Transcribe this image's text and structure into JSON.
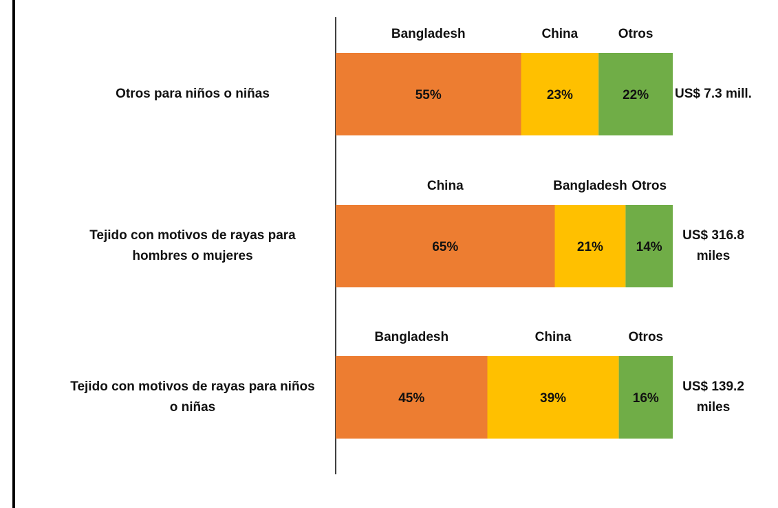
{
  "chart_data": {
    "type": "bar",
    "orientation": "horizontal",
    "stacked": true,
    "xlim": [
      0,
      100
    ],
    "colors": [
      "#ED7D31",
      "#FFC000",
      "#70AD47"
    ],
    "categories": [
      "Otros para niños o niñas",
      "Tejido con motivos de rayas para hombres o mujeres",
      "Tejido con motivos de rayas para niños o niñas"
    ],
    "totals": [
      "US$ 7.3 mill.",
      "US$ 316.8 miles",
      "US$ 139.2 miles"
    ],
    "rows": [
      {
        "names": [
          "Bangladesh",
          "China",
          "Otros"
        ],
        "values": [
          55,
          23,
          22
        ],
        "value_labels": [
          "55%",
          "23%",
          "22%"
        ]
      },
      {
        "names": [
          "China",
          "Bangladesh",
          "Otros"
        ],
        "values": [
          65,
          21,
          14
        ],
        "value_labels": [
          "65%",
          "21%",
          "14%"
        ]
      },
      {
        "names": [
          "Bangladesh",
          "China",
          "Otros"
        ],
        "values": [
          45,
          39,
          16
        ],
        "value_labels": [
          "45%",
          "39%",
          "16%"
        ]
      }
    ]
  }
}
